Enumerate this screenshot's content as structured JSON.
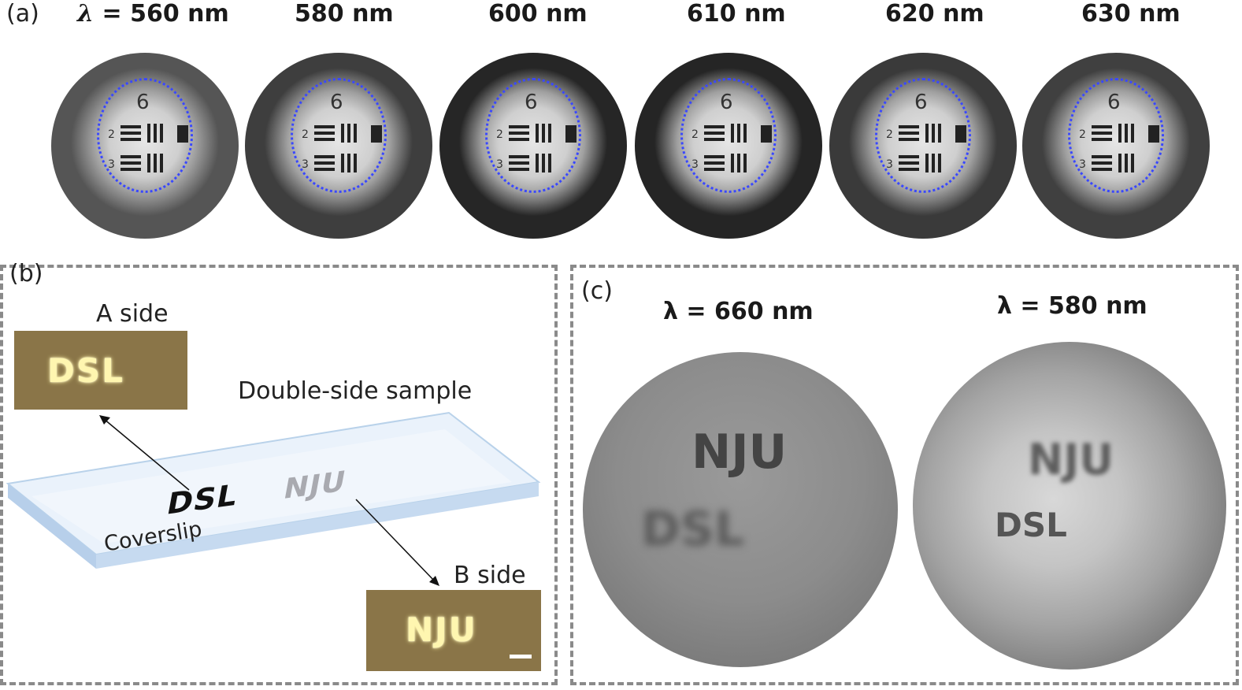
{
  "panel_a": {
    "letter": "(a)",
    "lambda_symbol": "λ",
    "first_prefix": " = ",
    "wavelengths": [
      "560 nm",
      "580 nm",
      "600 nm",
      "610 nm",
      "620 nm",
      "630 nm"
    ],
    "target_group_label": "6",
    "element_labels": [
      "2",
      "3"
    ]
  },
  "panel_b": {
    "letter": "(b)",
    "a_side_label": "A side",
    "a_side_text": "DSL",
    "sample_label": "Double-side sample",
    "coverslip_label": "Coverslip",
    "front_text": "DSL",
    "back_text": "NJU",
    "b_side_label": "B side",
    "b_side_text": "NJU"
  },
  "panel_c": {
    "letter": "(c)",
    "left_wavelength": "λ = 660 nm",
    "right_wavelength": "λ = 580 nm",
    "left_top_text": "NJU",
    "left_bottom_text": "DSL",
    "right_top_text": "NJU",
    "right_bottom_text": "DSL"
  },
  "colors": {
    "dash_border": "#8a8a8a",
    "circle_dots": "#3a48ff",
    "coverslip_fill": "#d7e6f6",
    "photo_bg": "#8a7548"
  }
}
